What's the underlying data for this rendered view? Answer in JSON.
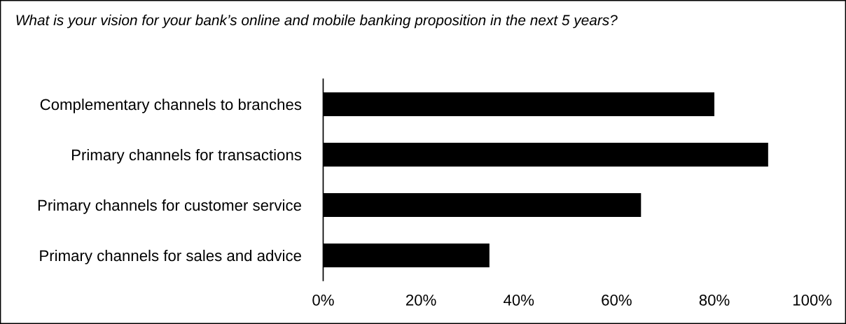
{
  "chart_data": {
    "type": "bar",
    "orientation": "horizontal",
    "title": "What is your vision for your bank’s online and mobile banking proposition in the next 5 years?",
    "categories": [
      "Complementary channels to branches",
      "Primary channels for transactions",
      "Primary channels for customer service",
      "Primary channels for sales and advice"
    ],
    "values": [
      80,
      91,
      65,
      34
    ],
    "color": "#000000",
    "xlim": [
      0,
      100
    ],
    "xticks": [
      {
        "value": 0,
        "label": "0%"
      },
      {
        "value": 20,
        "label": "20%"
      },
      {
        "value": 40,
        "label": "40%"
      },
      {
        "value": 60,
        "label": "60%"
      },
      {
        "value": 80,
        "label": "80%"
      },
      {
        "value": 100,
        "label": "100%"
      }
    ],
    "grid": false,
    "legend": false
  }
}
